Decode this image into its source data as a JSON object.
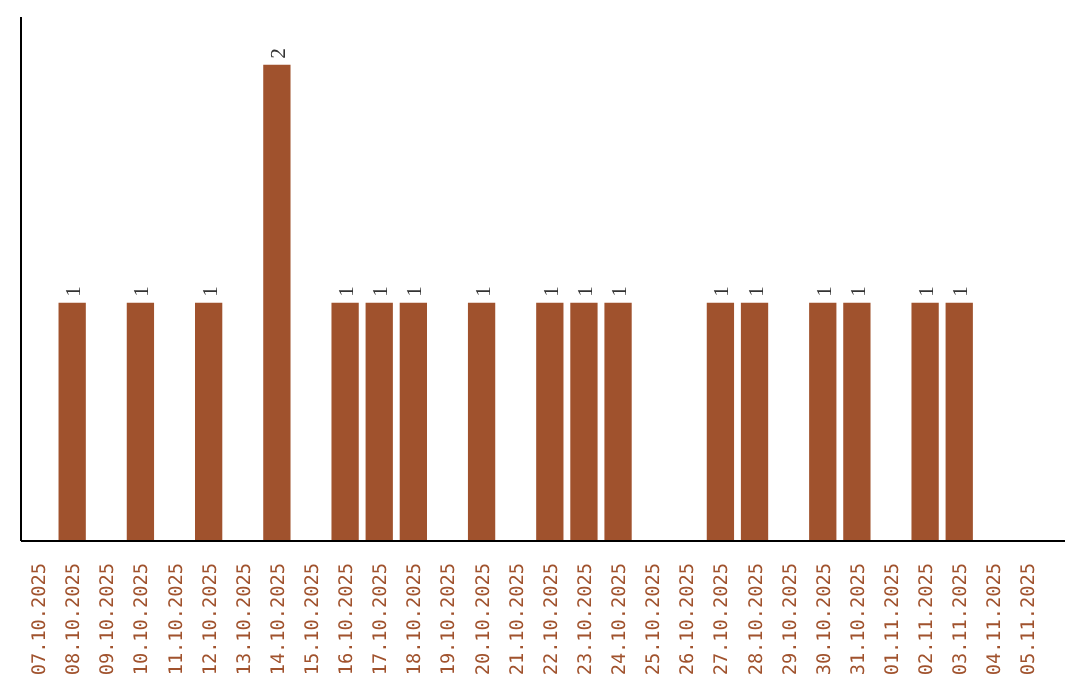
{
  "chart_data": {
    "type": "bar",
    "categories": [
      "07.10.2025",
      "08.10.2025",
      "09.10.2025",
      "10.10.2025",
      "11.10.2025",
      "12.10.2025",
      "13.10.2025",
      "14.10.2025",
      "15.10.2025",
      "16.10.2025",
      "17.10.2025",
      "18.10.2025",
      "19.10.2025",
      "20.10.2025",
      "21.10.2025",
      "22.10.2025",
      "23.10.2025",
      "24.10.2025",
      "25.10.2025",
      "26.10.2025",
      "27.10.2025",
      "28.10.2025",
      "29.10.2025",
      "30.10.2025",
      "31.10.2025",
      "01.11.2025",
      "02.11.2025",
      "03.11.2025",
      "04.11.2025",
      "05.11.2025"
    ],
    "values": [
      0,
      1,
      0,
      1,
      0,
      1,
      0,
      2,
      0,
      1,
      1,
      1,
      0,
      1,
      0,
      1,
      1,
      1,
      0,
      0,
      1,
      1,
      0,
      1,
      1,
      0,
      1,
      1,
      0,
      0
    ],
    "value_labels": [
      null,
      "1",
      null,
      "1",
      null,
      "1",
      null,
      "2",
      null,
      "1",
      "1",
      "1",
      null,
      "1",
      null,
      "1",
      "1",
      "1",
      null,
      null,
      "1",
      "1",
      null,
      "1",
      "1",
      null,
      "1",
      "1",
      null,
      null
    ],
    "color": "#a0522d",
    "grid": false
  }
}
